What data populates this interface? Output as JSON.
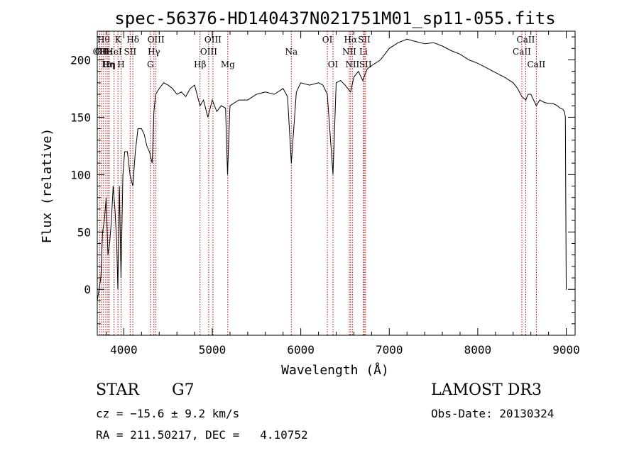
{
  "chart_data": {
    "type": "line",
    "title": "spec-56376-HD140437N021751M01_sp11-055.fits",
    "xlabel": "Wavelength (Å)",
    "ylabel": "Flux (relative)",
    "xlim": [
      3700,
      9100
    ],
    "ylim": [
      -40,
      225
    ],
    "xticks": [
      {
        "value": 4000,
        "label": "4000"
      },
      {
        "value": 5000,
        "label": "5000"
      },
      {
        "value": 6000,
        "label": "6000"
      },
      {
        "value": 7000,
        "label": "7000"
      },
      {
        "value": 8000,
        "label": "8000"
      },
      {
        "value": 9000,
        "label": "9000"
      }
    ],
    "yticks": [
      {
        "value": 0,
        "label": "0"
      },
      {
        "value": 50,
        "label": "50"
      },
      {
        "value": 100,
        "label": "100"
      },
      {
        "value": 150,
        "label": "150"
      },
      {
        "value": 200,
        "label": "200"
      }
    ],
    "series": [
      {
        "name": "flux",
        "x": [
          3700,
          3720,
          3740,
          3760,
          3780,
          3800,
          3820,
          3840,
          3860,
          3880,
          3900,
          3920,
          3933,
          3950,
          3968,
          3990,
          4010,
          4040,
          4070,
          4102,
          4130,
          4160,
          4200,
          4230,
          4260,
          4290,
          4320,
          4340,
          4360,
          4400,
          4450,
          4500,
          4550,
          4600,
          4650,
          4700,
          4750,
          4800,
          4861,
          4900,
          4950,
          5000,
          5050,
          5100,
          5150,
          5172,
          5200,
          5300,
          5400,
          5500,
          5600,
          5700,
          5800,
          5850,
          5893,
          5950,
          6000,
          6100,
          6200,
          6250,
          6300,
          6364,
          6400,
          6450,
          6500,
          6563,
          6600,
          6650,
          6700,
          6750,
          6800,
          6900,
          7000,
          7100,
          7200,
          7300,
          7400,
          7500,
          7600,
          7700,
          7800,
          7900,
          8000,
          8100,
          8200,
          8300,
          8400,
          8450,
          8498,
          8542,
          8570,
          8600,
          8662,
          8700,
          8750,
          8800,
          8850,
          8900,
          8930,
          8960,
          8980,
          8990,
          9000,
          9005
        ],
        "values": [
          -10,
          0,
          10,
          50,
          60,
          80,
          30,
          40,
          60,
          90,
          70,
          40,
          0,
          90,
          10,
          100,
          120,
          120,
          100,
          90,
          120,
          140,
          140,
          135,
          125,
          120,
          110,
          155,
          170,
          175,
          180,
          178,
          175,
          170,
          172,
          168,
          175,
          178,
          160,
          165,
          150,
          165,
          155,
          160,
          158,
          100,
          160,
          165,
          165,
          170,
          172,
          170,
          175,
          168,
          110,
          172,
          180,
          178,
          180,
          178,
          170,
          100,
          180,
          182,
          178,
          172,
          185,
          190,
          182,
          192,
          195,
          200,
          210,
          215,
          218,
          216,
          214,
          215,
          212,
          208,
          205,
          200,
          197,
          193,
          189,
          185,
          180,
          175,
          168,
          165,
          170,
          170,
          160,
          165,
          163,
          162,
          162,
          160,
          158,
          157,
          155,
          150,
          0,
          0
        ]
      }
    ],
    "line_markers": [
      {
        "wavelength": 3727,
        "label": "OII",
        "row": 2
      },
      {
        "wavelength": 3750,
        "label": "OII",
        "row": 2
      },
      {
        "wavelength": 3771,
        "label": "Hθ",
        "row": 1
      },
      {
        "wavelength": 3797,
        "label": "He",
        "row": 2
      },
      {
        "wavelength": 3820,
        "label": "Hη",
        "row": 3
      },
      {
        "wavelength": 3835,
        "label": "Hη",
        "row": 3
      },
      {
        "wavelength": 3889,
        "label": "HeI",
        "row": 2
      },
      {
        "wavelength": 3934,
        "label": "K",
        "row": 1
      },
      {
        "wavelength": 3969,
        "label": "H",
        "row": 3
      },
      {
        "wavelength": 4072,
        "label": "SII",
        "row": 2
      },
      {
        "wavelength": 4102,
        "label": "Hδ",
        "row": 1
      },
      {
        "wavelength": 4300,
        "label": "G",
        "row": 3
      },
      {
        "wavelength": 4340,
        "label": "Hγ",
        "row": 2
      },
      {
        "wavelength": 4363,
        "label": "OIII",
        "row": 1
      },
      {
        "wavelength": 4861,
        "label": "Hβ",
        "row": 3
      },
      {
        "wavelength": 4959,
        "label": "OIII",
        "row": 2
      },
      {
        "wavelength": 5007,
        "label": "OIII",
        "row": 1
      },
      {
        "wavelength": 5175,
        "label": "Mg",
        "row": 3
      },
      {
        "wavelength": 5893,
        "label": "Na",
        "row": 2
      },
      {
        "wavelength": 6300,
        "label": "OI",
        "row": 1
      },
      {
        "wavelength": 6364,
        "label": "OI",
        "row": 3
      },
      {
        "wavelength": 6548,
        "label": "NII",
        "row": 2
      },
      {
        "wavelength": 6563,
        "label": "Hα",
        "row": 1
      },
      {
        "wavelength": 6583,
        "label": "NII",
        "row": 3
      },
      {
        "wavelength": 6708,
        "label": "Li",
        "row": 2
      },
      {
        "wavelength": 6717,
        "label": "SII",
        "row": 1
      },
      {
        "wavelength": 6731,
        "label": "SII",
        "row": 3
      },
      {
        "wavelength": 8498,
        "label": "CaII",
        "row": 2
      },
      {
        "wavelength": 8542,
        "label": "CaII",
        "row": 1
      },
      {
        "wavelength": 8662,
        "label": "CaII",
        "row": 3
      }
    ]
  },
  "info": {
    "object_class": "STAR",
    "subclass": "G7",
    "survey": "LAMOST DR3",
    "redshift": "cz = −15.6 ± 9.2 km/s",
    "obs_date": "Obs-Date: 20130324",
    "coordinates": "RA = 211.50217, DEC =   4.10752"
  }
}
